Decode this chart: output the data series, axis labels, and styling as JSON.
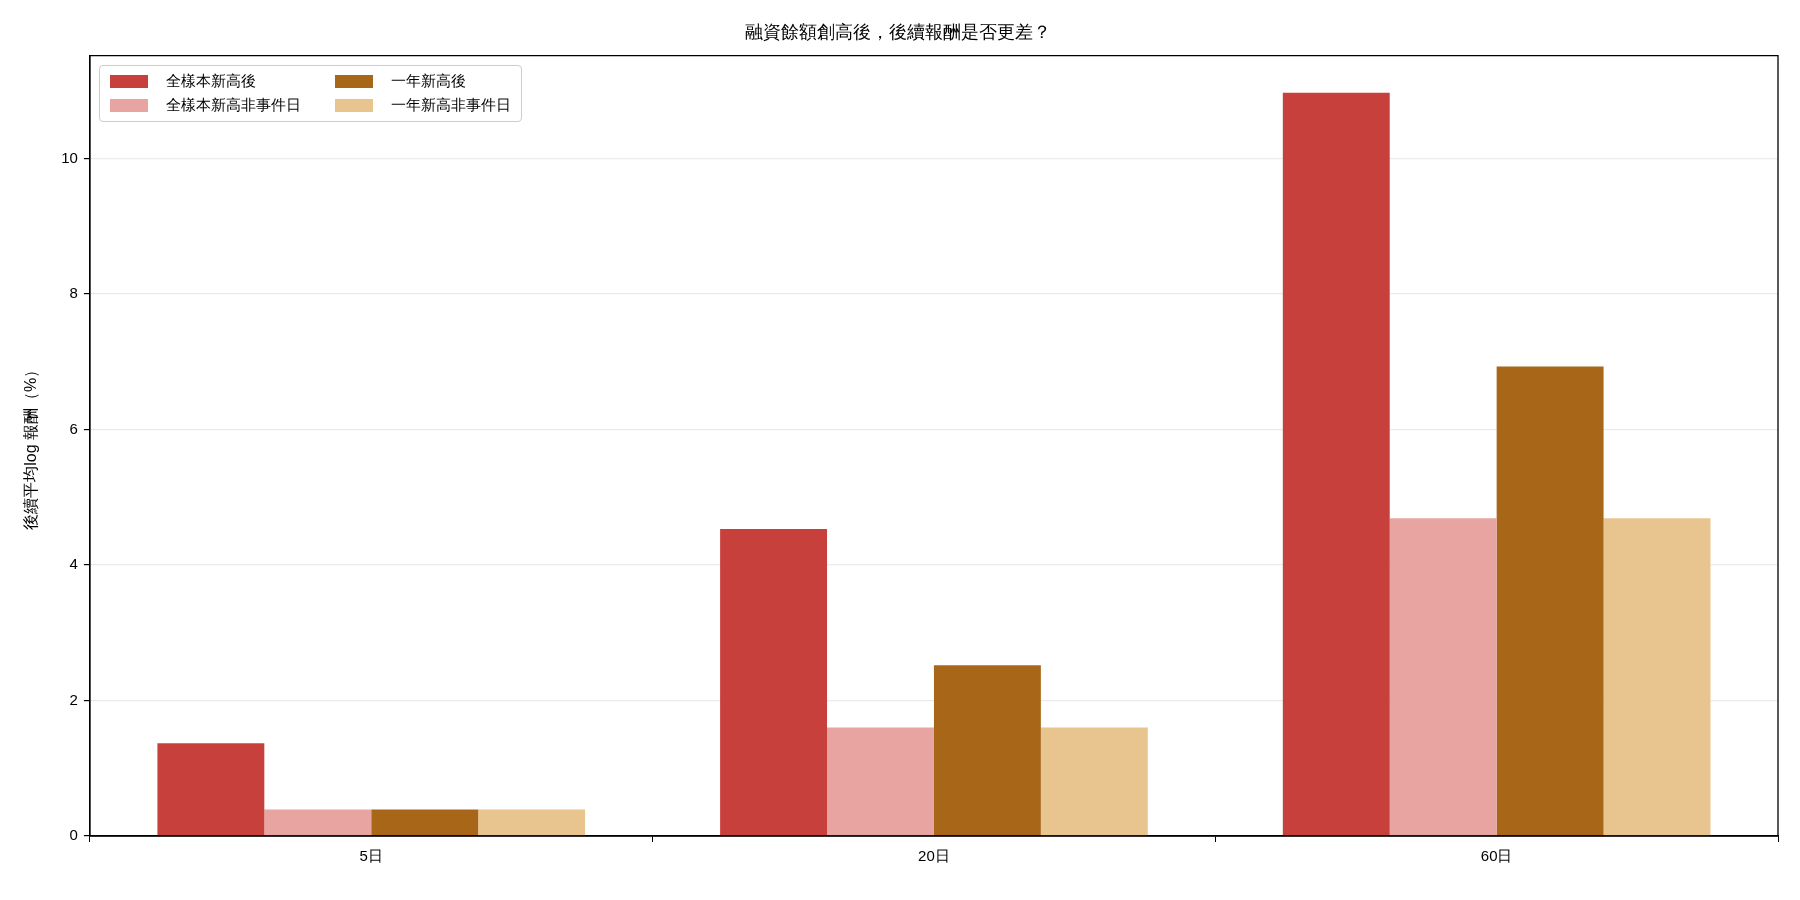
{
  "chart_data": {
    "type": "bar",
    "title": "融資餘額創高後，後續報酬是否更差？",
    "ylabel": "後續平均log 報酬（%）",
    "categories": [
      "5日",
      "20日",
      "60日"
    ],
    "series": [
      {
        "name": "全樣本新高後",
        "color": "#c8403c",
        "values": [
          1.37,
          4.53,
          10.97
        ]
      },
      {
        "name": "全樣本新高非事件日",
        "color": "#e7a4a1",
        "values": [
          0.39,
          1.6,
          4.69
        ]
      },
      {
        "name": "一年新高後",
        "color": "#a76618",
        "values": [
          0.39,
          2.52,
          6.93
        ]
      },
      {
        "name": "一年新高非事件日",
        "color": "#e8c48e",
        "values": [
          0.39,
          1.6,
          4.69
        ]
      }
    ],
    "ylim": [
      0,
      11.52
    ],
    "yticks": [
      0,
      2,
      4,
      6,
      8,
      10
    ],
    "grid": "y",
    "legend": "top left"
  }
}
